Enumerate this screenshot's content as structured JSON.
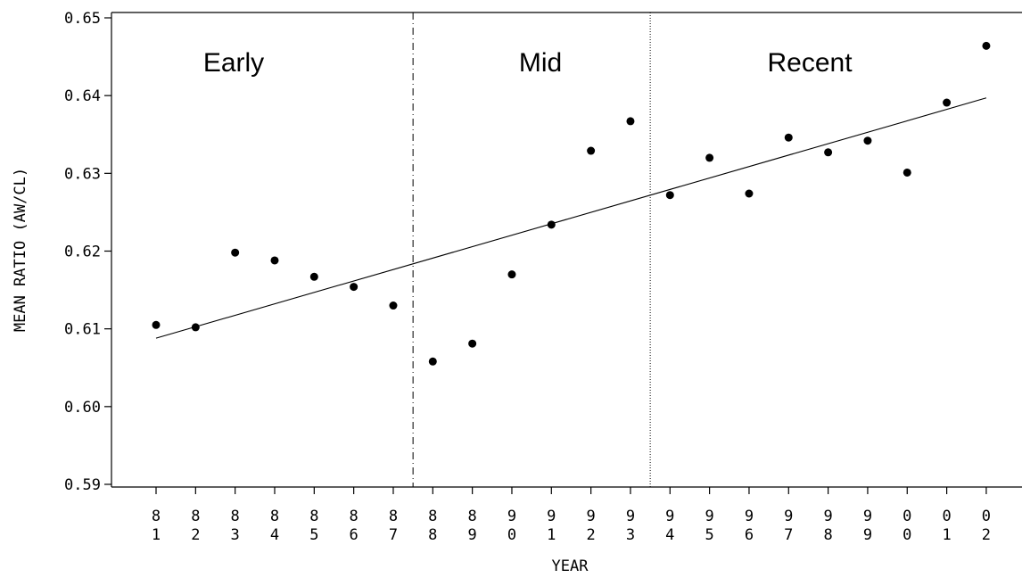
{
  "chart_data": {
    "type": "scatter",
    "xlabel": "YEAR",
    "ylabel": "MEAN RATIO (AW/CL)",
    "ylim": [
      0.59,
      0.65
    ],
    "yticks": [
      "0.59",
      "0.60",
      "0.61",
      "0.62",
      "0.63",
      "0.64",
      "0.65"
    ],
    "categories": [
      "81",
      "82",
      "83",
      "84",
      "85",
      "86",
      "87",
      "88",
      "89",
      "90",
      "91",
      "92",
      "93",
      "94",
      "95",
      "96",
      "97",
      "98",
      "99",
      "00",
      "01",
      "02"
    ],
    "values": [
      0.6105,
      0.6102,
      0.6198,
      0.6188,
      0.6167,
      0.6154,
      0.613,
      0.6058,
      0.6081,
      0.617,
      0.6234,
      0.6329,
      0.6367,
      0.6272,
      0.632,
      0.6274,
      0.6346,
      0.6327,
      0.6342,
      0.6301,
      0.6391,
      0.6464
    ],
    "trendline": {
      "start": 0.6088,
      "end": 0.6397
    },
    "periods": [
      {
        "label": "Early"
      },
      {
        "label": "Mid"
      },
      {
        "label": "Recent"
      }
    ],
    "grid": false,
    "legend": "none",
    "colors": {
      "points": "#000000",
      "lines": "#000000",
      "background": "#ffffff"
    }
  }
}
